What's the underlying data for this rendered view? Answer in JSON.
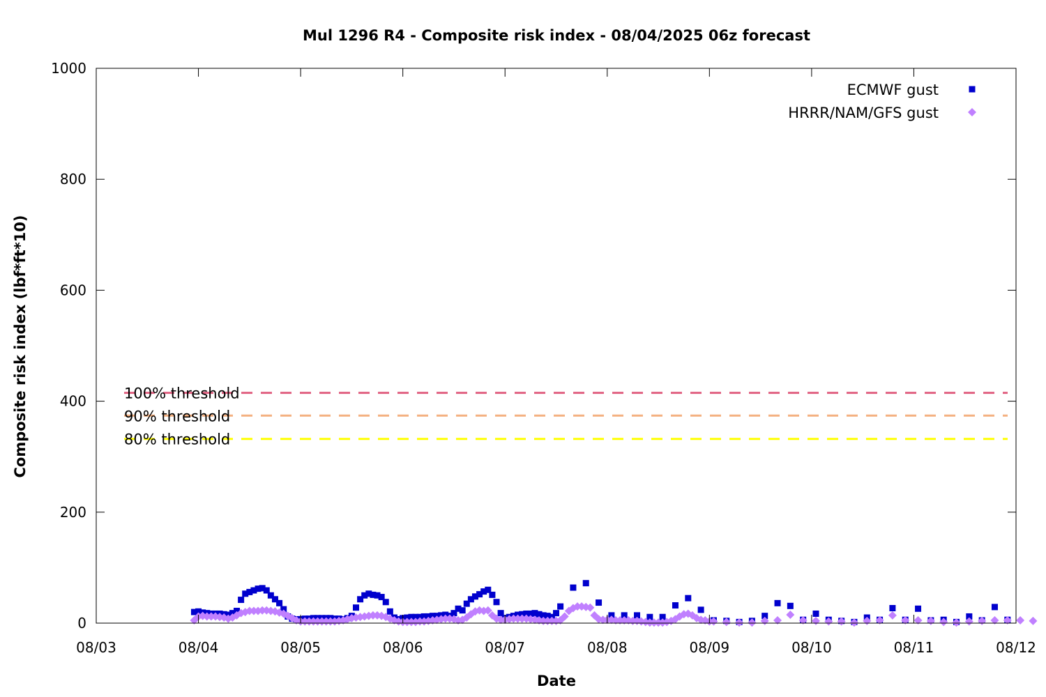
{
  "chart_data": {
    "type": "scatter",
    "title": "Mul 1296 R4 - Composite risk index - 08/04/2025 06z forecast",
    "xlabel": "Date",
    "ylabel": "Composite risk index (lbf*ft*10)",
    "ylim": [
      0,
      1000
    ],
    "xlim": [
      "08/03 00:00",
      "08/12 00:00"
    ],
    "x_ticks": [
      "08/03",
      "08/04",
      "08/05",
      "08/06",
      "08/07",
      "08/08",
      "08/09",
      "08/10",
      "08/11",
      "08/12"
    ],
    "y_ticks": [
      "0",
      "200",
      "400",
      "600",
      "800",
      "1000"
    ],
    "legend_position": "top-right",
    "grid": false,
    "series": [
      {
        "name": "ECMWF gust",
        "marker": "square",
        "color": "#0000cd",
        "points": [
          [
            "08/03 23:00",
            20
          ],
          [
            "08/04 00:00",
            21
          ],
          [
            "08/04 01:00",
            19
          ],
          [
            "08/04 02:00",
            18
          ],
          [
            "08/04 03:00",
            17
          ],
          [
            "08/04 04:00",
            17
          ],
          [
            "08/04 05:00",
            17
          ],
          [
            "08/04 06:00",
            16
          ],
          [
            "08/04 07:00",
            15
          ],
          [
            "08/04 08:00",
            18
          ],
          [
            "08/04 09:00",
            22
          ],
          [
            "08/04 10:00",
            42
          ],
          [
            "08/04 11:00",
            53
          ],
          [
            "08/04 12:00",
            56
          ],
          [
            "08/04 13:00",
            59
          ],
          [
            "08/04 14:00",
            62
          ],
          [
            "08/04 15:00",
            63
          ],
          [
            "08/04 16:00",
            59
          ],
          [
            "08/04 17:00",
            50
          ],
          [
            "08/04 18:00",
            43
          ],
          [
            "08/04 19:00",
            36
          ],
          [
            "08/04 20:00",
            25
          ],
          [
            "08/04 21:00",
            12
          ],
          [
            "08/04 22:00",
            8
          ],
          [
            "08/04 23:00",
            7
          ],
          [
            "08/05 00:00",
            7
          ],
          [
            "08/05 01:00",
            8
          ],
          [
            "08/05 02:00",
            8
          ],
          [
            "08/05 03:00",
            9
          ],
          [
            "08/05 04:00",
            9
          ],
          [
            "08/05 05:00",
            9
          ],
          [
            "08/05 06:00",
            9
          ],
          [
            "08/05 07:00",
            9
          ],
          [
            "08/05 08:00",
            8
          ],
          [
            "08/05 09:00",
            8
          ],
          [
            "08/05 10:00",
            7
          ],
          [
            "08/05 11:00",
            9
          ],
          [
            "08/05 12:00",
            13
          ],
          [
            "08/05 13:00",
            28
          ],
          [
            "08/05 14:00",
            43
          ],
          [
            "08/05 15:00",
            50
          ],
          [
            "08/05 16:00",
            53
          ],
          [
            "08/05 17:00",
            51
          ],
          [
            "08/05 18:00",
            50
          ],
          [
            "08/05 19:00",
            47
          ],
          [
            "08/05 20:00",
            38
          ],
          [
            "08/05 21:00",
            21
          ],
          [
            "08/05 22:00",
            10
          ],
          [
            "08/05 23:00",
            7
          ],
          [
            "08/06 00:00",
            9
          ],
          [
            "08/06 01:00",
            10
          ],
          [
            "08/06 02:00",
            11
          ],
          [
            "08/06 03:00",
            11
          ],
          [
            "08/06 04:00",
            11
          ],
          [
            "08/06 05:00",
            12
          ],
          [
            "08/06 06:00",
            12
          ],
          [
            "08/06 07:00",
            13
          ],
          [
            "08/06 08:00",
            13
          ],
          [
            "08/06 09:00",
            14
          ],
          [
            "08/06 10:00",
            15
          ],
          [
            "08/06 11:00",
            13
          ],
          [
            "08/06 12:00",
            18
          ],
          [
            "08/06 13:00",
            26
          ],
          [
            "08/06 14:00",
            23
          ],
          [
            "08/06 15:00",
            35
          ],
          [
            "08/06 16:00",
            43
          ],
          [
            "08/06 17:00",
            48
          ],
          [
            "08/06 18:00",
            52
          ],
          [
            "08/06 19:00",
            57
          ],
          [
            "08/06 20:00",
            60
          ],
          [
            "08/06 21:00",
            51
          ],
          [
            "08/06 22:00",
            38
          ],
          [
            "08/06 23:00",
            18
          ],
          [
            "08/07 00:00",
            9
          ],
          [
            "08/07 01:00",
            11
          ],
          [
            "08/07 02:00",
            13
          ],
          [
            "08/07 03:00",
            15
          ],
          [
            "08/07 04:00",
            16
          ],
          [
            "08/07 05:00",
            17
          ],
          [
            "08/07 06:00",
            17
          ],
          [
            "08/07 07:00",
            18
          ],
          [
            "08/07 08:00",
            16
          ],
          [
            "08/07 09:00",
            14
          ],
          [
            "08/07 10:00",
            13
          ],
          [
            "08/07 11:00",
            11
          ],
          [
            "08/07 12:00",
            18
          ],
          [
            "08/07 13:00",
            30
          ],
          [
            "08/07 16:00",
            64
          ],
          [
            "08/07 19:00",
            72
          ],
          [
            "08/07 22:00",
            37
          ],
          [
            "08/08 01:00",
            14
          ],
          [
            "08/08 04:00",
            14
          ],
          [
            "08/08 07:00",
            14
          ],
          [
            "08/08 10:00",
            11
          ],
          [
            "08/08 13:00",
            11
          ],
          [
            "08/08 16:00",
            32
          ],
          [
            "08/08 19:00",
            45
          ],
          [
            "08/08 22:00",
            24
          ],
          [
            "08/09 01:00",
            5
          ],
          [
            "08/09 04:00",
            4
          ],
          [
            "08/09 07:00",
            2
          ],
          [
            "08/09 10:00",
            4
          ],
          [
            "08/09 13:00",
            13
          ],
          [
            "08/09 16:00",
            36
          ],
          [
            "08/09 19:00",
            31
          ],
          [
            "08/09 22:00",
            6
          ],
          [
            "08/10 01:00",
            17
          ],
          [
            "08/10 04:00",
            6
          ],
          [
            "08/10 07:00",
            4
          ],
          [
            "08/10 10:00",
            2
          ],
          [
            "08/10 13:00",
            10
          ],
          [
            "08/10 16:00",
            6
          ],
          [
            "08/10 19:00",
            27
          ],
          [
            "08/10 22:00",
            6
          ],
          [
            "08/11 01:00",
            26
          ],
          [
            "08/11 04:00",
            5
          ],
          [
            "08/11 07:00",
            6
          ],
          [
            "08/11 10:00",
            2
          ],
          [
            "08/11 13:00",
            12
          ],
          [
            "08/11 16:00",
            5
          ],
          [
            "08/11 19:00",
            29
          ],
          [
            "08/11 22:00",
            6
          ]
        ]
      },
      {
        "name": "HRRR/NAM/GFS gust",
        "marker": "diamond",
        "color": "#c080ff",
        "points": [
          [
            "08/03 23:00",
            5
          ],
          [
            "08/04 00:00",
            12
          ],
          [
            "08/04 01:00",
            13
          ],
          [
            "08/04 02:00",
            12
          ],
          [
            "08/04 03:00",
            12
          ],
          [
            "08/04 04:00",
            12
          ],
          [
            "08/04 05:00",
            11
          ],
          [
            "08/04 06:00",
            10
          ],
          [
            "08/04 07:00",
            8
          ],
          [
            "08/04 08:00",
            10
          ],
          [
            "08/04 09:00",
            14
          ],
          [
            "08/04 10:00",
            18
          ],
          [
            "08/04 11:00",
            20
          ],
          [
            "08/04 12:00",
            22
          ],
          [
            "08/04 13:00",
            22
          ],
          [
            "08/04 14:00",
            22
          ],
          [
            "08/04 15:00",
            23
          ],
          [
            "08/04 16:00",
            23
          ],
          [
            "08/04 17:00",
            22
          ],
          [
            "08/04 18:00",
            21
          ],
          [
            "08/04 19:00",
            19
          ],
          [
            "08/04 20:00",
            17
          ],
          [
            "08/04 21:00",
            13
          ],
          [
            "08/04 22:00",
            9
          ],
          [
            "08/04 23:00",
            5
          ],
          [
            "08/05 00:00",
            3
          ],
          [
            "08/05 01:00",
            3
          ],
          [
            "08/05 02:00",
            3
          ],
          [
            "08/05 03:00",
            3
          ],
          [
            "08/05 04:00",
            3
          ],
          [
            "08/05 05:00",
            3
          ],
          [
            "08/05 06:00",
            3
          ],
          [
            "08/05 07:00",
            3
          ],
          [
            "08/05 08:00",
            3
          ],
          [
            "08/05 09:00",
            4
          ],
          [
            "08/05 10:00",
            5
          ],
          [
            "08/05 11:00",
            7
          ],
          [
            "08/05 12:00",
            9
          ],
          [
            "08/05 13:00",
            10
          ],
          [
            "08/05 14:00",
            11
          ],
          [
            "08/05 15:00",
            12
          ],
          [
            "08/05 16:00",
            13
          ],
          [
            "08/05 17:00",
            14
          ],
          [
            "08/05 18:00",
            14
          ],
          [
            "08/05 19:00",
            13
          ],
          [
            "08/05 20:00",
            11
          ],
          [
            "08/05 21:00",
            8
          ],
          [
            "08/05 22:00",
            5
          ],
          [
            "08/05 23:00",
            3
          ],
          [
            "08/06 00:00",
            2
          ],
          [
            "08/06 01:00",
            2
          ],
          [
            "08/06 02:00",
            2
          ],
          [
            "08/06 03:00",
            2
          ],
          [
            "08/06 04:00",
            3
          ],
          [
            "08/06 05:00",
            3
          ],
          [
            "08/06 06:00",
            4
          ],
          [
            "08/06 07:00",
            5
          ],
          [
            "08/06 08:00",
            6
          ],
          [
            "08/06 09:00",
            7
          ],
          [
            "08/06 10:00",
            8
          ],
          [
            "08/06 11:00",
            8
          ],
          [
            "08/06 12:00",
            7
          ],
          [
            "08/06 13:00",
            5
          ],
          [
            "08/06 14:00",
            6
          ],
          [
            "08/06 15:00",
            10
          ],
          [
            "08/06 16:00",
            16
          ],
          [
            "08/06 17:00",
            21
          ],
          [
            "08/06 18:00",
            23
          ],
          [
            "08/06 19:00",
            22
          ],
          [
            "08/06 20:00",
            23
          ],
          [
            "08/06 21:00",
            14
          ],
          [
            "08/06 22:00",
            8
          ],
          [
            "08/06 23:00",
            6
          ],
          [
            "08/07 00:00",
            6
          ],
          [
            "08/07 01:00",
            7
          ],
          [
            "08/07 02:00",
            8
          ],
          [
            "08/07 03:00",
            8
          ],
          [
            "08/07 04:00",
            8
          ],
          [
            "08/07 05:00",
            8
          ],
          [
            "08/07 06:00",
            7
          ],
          [
            "08/07 07:00",
            6
          ],
          [
            "08/07 08:00",
            5
          ],
          [
            "08/07 09:00",
            4
          ],
          [
            "08/07 10:00",
            4
          ],
          [
            "08/07 11:00",
            4
          ],
          [
            "08/07 12:00",
            4
          ],
          [
            "08/07 13:00",
            5
          ],
          [
            "08/07 14:00",
            12
          ],
          [
            "08/07 15:00",
            22
          ],
          [
            "08/07 16:00",
            27
          ],
          [
            "08/07 17:00",
            30
          ],
          [
            "08/07 18:00",
            30
          ],
          [
            "08/07 19:00",
            29
          ],
          [
            "08/07 20:00",
            28
          ],
          [
            "08/07 21:00",
            14
          ],
          [
            "08/07 22:00",
            7
          ],
          [
            "08/07 23:00",
            6
          ],
          [
            "08/08 00:00",
            6
          ],
          [
            "08/08 01:00",
            6
          ],
          [
            "08/08 02:00",
            5
          ],
          [
            "08/08 03:00",
            5
          ],
          [
            "08/08 04:00",
            5
          ],
          [
            "08/08 05:00",
            5
          ],
          [
            "08/08 06:00",
            4
          ],
          [
            "08/08 07:00",
            4
          ],
          [
            "08/08 08:00",
            3
          ],
          [
            "08/08 09:00",
            2
          ],
          [
            "08/08 10:00",
            1
          ],
          [
            "08/08 11:00",
            1
          ],
          [
            "08/08 12:00",
            1
          ],
          [
            "08/08 13:00",
            1
          ],
          [
            "08/08 14:00",
            2
          ],
          [
            "08/08 15:00",
            4
          ],
          [
            "08/08 16:00",
            7
          ],
          [
            "08/08 17:00",
            12
          ],
          [
            "08/08 18:00",
            16
          ],
          [
            "08/08 19:00",
            17
          ],
          [
            "08/08 20:00",
            14
          ],
          [
            "08/08 21:00",
            9
          ],
          [
            "08/08 22:00",
            6
          ],
          [
            "08/08 23:00",
            5
          ],
          [
            "08/09 00:00",
            3
          ],
          [
            "08/09 01:00",
            3
          ],
          [
            "08/09 04:00",
            2
          ],
          [
            "08/09 07:00",
            1
          ],
          [
            "08/09 10:00",
            1
          ],
          [
            "08/09 13:00",
            4
          ],
          [
            "08/09 16:00",
            5
          ],
          [
            "08/09 19:00",
            15
          ],
          [
            "08/09 22:00",
            5
          ],
          [
            "08/10 01:00",
            4
          ],
          [
            "08/10 04:00",
            3
          ],
          [
            "08/10 07:00",
            3
          ],
          [
            "08/10 10:00",
            1
          ],
          [
            "08/10 13:00",
            4
          ],
          [
            "08/10 16:00",
            5
          ],
          [
            "08/10 19:00",
            14
          ],
          [
            "08/10 22:00",
            5
          ],
          [
            "08/11 01:00",
            5
          ],
          [
            "08/11 04:00",
            4
          ],
          [
            "08/11 07:00",
            2
          ],
          [
            "08/11 10:00",
            1
          ],
          [
            "08/11 13:00",
            3
          ],
          [
            "08/11 16:00",
            4
          ],
          [
            "08/11 19:00",
            5
          ],
          [
            "08/11 22:00",
            5
          ],
          [
            "08/12 01:00",
            5
          ],
          [
            "08/12 04:00",
            4
          ]
        ]
      }
    ],
    "thresholds": [
      {
        "label": "100% threshold",
        "value": 415,
        "color": "#e06080"
      },
      {
        "label": "90% threshold",
        "value": 374,
        "color": "#f4b080"
      },
      {
        "label": "80% threshold",
        "value": 332,
        "color": "#ffff00"
      }
    ]
  }
}
